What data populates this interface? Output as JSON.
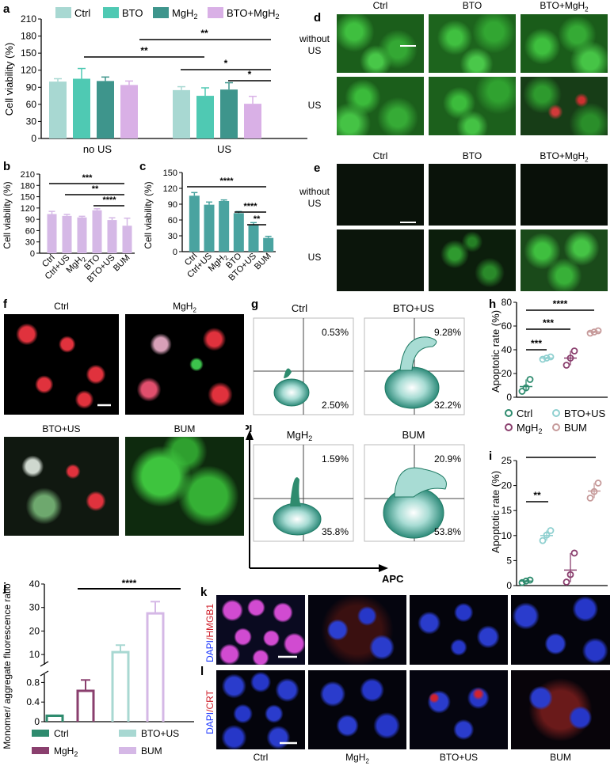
{
  "panel_labels": [
    "a",
    "b",
    "c",
    "d",
    "e",
    "f",
    "g",
    "h",
    "i",
    "j",
    "k",
    "l"
  ],
  "colors": {
    "ctrl": "#a8d8d2",
    "bto": "#4fc9b3",
    "mgh2": "#3e958c",
    "btomgh2": "#d9b0e6",
    "bu": "#d5b8e6",
    "teal": "#4aa3a0",
    "green": "#2e8b6e",
    "red": "#e0323d",
    "magenta": "#d14bd1",
    "blue": "#1c37ff"
  },
  "chart_data": [
    {
      "id": "a",
      "type": "bar",
      "ylabel": "Cell viability (%)",
      "ylim": [
        0,
        210
      ],
      "yticks": [
        "0",
        "30",
        "60",
        "90",
        "120",
        "150",
        "180",
        "210"
      ],
      "groups": [
        "no US",
        "US"
      ],
      "legend": [
        "Ctrl",
        "BTO",
        "MgH2",
        "BTO+MgH2"
      ],
      "legend_sub": [
        "",
        "",
        "2",
        "2"
      ],
      "series": [
        {
          "name": "Ctrl",
          "values": [
            100,
            85
          ],
          "errors": [
            5,
            6
          ]
        },
        {
          "name": "BTO",
          "values": [
            105,
            75
          ],
          "errors": [
            18,
            14
          ]
        },
        {
          "name": "MgH2",
          "values": [
            101,
            86
          ],
          "errors": [
            7,
            12
          ]
        },
        {
          "name": "BTO+MgH2",
          "values": [
            94,
            61
          ],
          "errors": [
            7,
            13
          ]
        }
      ],
      "significance": [
        "**",
        "**",
        "*",
        "*"
      ]
    },
    {
      "id": "b",
      "type": "bar",
      "ylabel": "Cell viability (%)",
      "ylim": [
        0,
        210
      ],
      "yticks": [
        "0",
        "30",
        "60",
        "90",
        "120",
        "150",
        "180",
        "210"
      ],
      "categories": [
        "Ctrl",
        "Ctrl+US",
        "MgH",
        "BTO",
        "BTO+US",
        "BUM"
      ],
      "category_sub": [
        "",
        "",
        "2",
        "",
        "",
        ""
      ],
      "values": [
        104,
        99,
        95,
        114,
        88,
        73
      ],
      "errors": [
        7,
        4,
        3,
        4,
        6,
        20
      ],
      "significance": [
        "***",
        "**",
        "****"
      ]
    },
    {
      "id": "c",
      "type": "bar",
      "ylabel": "Cell viability (%)",
      "ylim": [
        0,
        150
      ],
      "yticks": [
        "0",
        "30",
        "60",
        "90",
        "120",
        "150"
      ],
      "categories": [
        "Ctrl",
        "Ctrl+US",
        "MgH",
        "BTO",
        "BTO+US",
        "BUM"
      ],
      "category_sub": [
        "",
        "",
        "2",
        "",
        "",
        ""
      ],
      "values": [
        106,
        89,
        96,
        73,
        50,
        26
      ],
      "errors": [
        6,
        5,
        2,
        3,
        5,
        3
      ],
      "significance": [
        "****",
        "****",
        "**"
      ]
    },
    {
      "id": "h",
      "type": "scatter",
      "ylabel": "Apoptotic rate (%)",
      "ylim": [
        0,
        80
      ],
      "yticks": [
        "0",
        "20",
        "40",
        "60",
        "80"
      ],
      "groups": [
        "Ctrl",
        "BTO+US",
        "MgH2",
        "BUM"
      ],
      "points": [
        [
          5,
          8,
          15
        ],
        [
          32,
          33,
          34
        ],
        [
          27,
          33,
          39
        ],
        [
          54,
          55,
          56
        ]
      ],
      "means": [
        9,
        33,
        33,
        55
      ],
      "significance": [
        "***",
        "***",
        "****"
      ]
    },
    {
      "id": "i",
      "type": "scatter",
      "ylabel": "Apoptotic rate (%)",
      "ylim": [
        0,
        25
      ],
      "yticks": [
        "0",
        "5",
        "10",
        "15",
        "20",
        "25"
      ],
      "groups": [
        "Ctrl",
        "BTO+US",
        "MgH2",
        "BUM"
      ],
      "points": [
        [
          0.6,
          0.9,
          1.1
        ],
        [
          9.0,
          10.1,
          11.0
        ],
        [
          0.7,
          2.2,
          6.5
        ],
        [
          17.5,
          18.8,
          20.5
        ]
      ],
      "means": [
        0.9,
        10,
        3.1,
        18.9
      ],
      "significance": [
        "**",
        "****"
      ]
    },
    {
      "id": "j",
      "type": "bar",
      "ylabel": "Monomer/ aggregate fluorescence ratio",
      "yticks_top": [
        "10",
        "20",
        "30",
        "40"
      ],
      "yticks_bottom": [
        "0",
        "0.4",
        "0.8"
      ],
      "categories": [
        "Ctrl",
        "MgH2",
        "BTO+US",
        "BUM"
      ],
      "values": [
        0.12,
        0.63,
        11,
        27.5
      ],
      "errors": [
        0.01,
        0.22,
        3,
        5
      ],
      "significance": [
        "****"
      ]
    }
  ],
  "legend_h": [
    {
      "label": "Ctrl"
    },
    {
      "label": "BTO+US"
    },
    {
      "label": "MgH",
      "sub": "2"
    },
    {
      "label": "BUM"
    }
  ],
  "legend_j": [
    {
      "label": "Ctrl"
    },
    {
      "label": "BTO+US"
    },
    {
      "label": "MgH",
      "sub": "2"
    },
    {
      "label": "BUM"
    }
  ],
  "panel_d": {
    "cols": [
      "Ctrl",
      "BTO",
      "BTO+MgH"
    ],
    "col3_sub": "2",
    "rows": [
      "without US",
      "US"
    ]
  },
  "panel_e": {
    "cols": [
      "Ctrl",
      "BTO",
      "BTO+MgH"
    ],
    "col3_sub": "2",
    "rows": [
      "without US",
      "US"
    ]
  },
  "panel_f": {
    "labels": [
      "Ctrl",
      "MgH",
      "BTO+US",
      "BUM"
    ],
    "sub2": "2"
  },
  "panel_g": {
    "titles": [
      "Ctrl",
      "BTO+US",
      "MgH",
      "BUM"
    ],
    "sub3": "2",
    "upper": [
      "0.53%",
      "9.28%",
      "1.59%",
      "20.9%"
    ],
    "lower": [
      "2.50%",
      "32.2%",
      "35.8%",
      "53.8%"
    ],
    "yaxis": "PI",
    "xaxis": "APC"
  },
  "panel_k": {
    "side": "DAPI/HMGB1",
    "side_a": "DAPI",
    "side_b": "/HMGB1"
  },
  "panel_l": {
    "side_a": "DAPI",
    "side_b": "/CRT",
    "cols": [
      "Ctrl",
      "MgH",
      "BTO+US",
      "BUM"
    ],
    "sub2": "2"
  }
}
